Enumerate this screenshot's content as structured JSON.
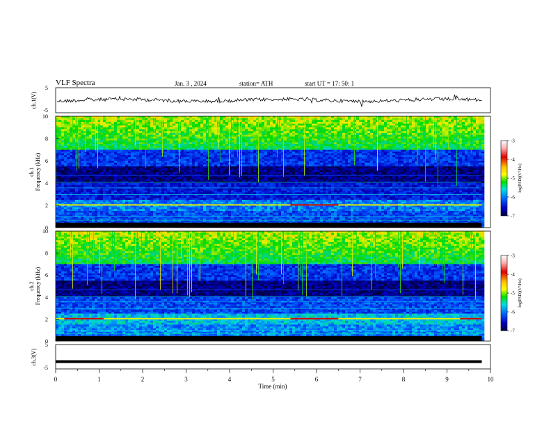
{
  "header": {
    "title": "VLF  Spectra",
    "date": "Jan.  3  ,  2024",
    "station": "station= ATH",
    "start": "start  UT  =   17: 50: 1"
  },
  "colorbar": {
    "label": "log(PSD)(V²/Hz)",
    "ticks": [
      "-3",
      "-4",
      "-5",
      "-6",
      "-7"
    ],
    "stops": [
      "#ffffff",
      "#ff8080",
      "#e00000",
      "#ffc000",
      "#ffff00",
      "#00e000",
      "#00e0e0",
      "#0060ff",
      "#0000c0",
      "#000040"
    ]
  },
  "chart_data": [
    {
      "type": "line",
      "ylabel": "ch.1(V)",
      "ylim": [
        -5,
        5
      ],
      "y_ticks": [
        "5",
        "-5"
      ],
      "description_level": -0.6
    },
    {
      "type": "heatmap",
      "ylabel": "ch.1\nFrequency (kHz)",
      "ylim": [
        0,
        10
      ],
      "y_ticks": [
        "0",
        "2",
        "4",
        "6",
        "8",
        "10"
      ],
      "colorbar": "log(PSD)(V²/Hz)",
      "clim": [
        -7,
        -3
      ]
    },
    {
      "type": "heatmap",
      "ylabel": "ch.2\nFrequency (kHz)",
      "ylim": [
        0,
        10
      ],
      "y_ticks": [
        "0",
        "2",
        "4",
        "6",
        "8",
        "10"
      ],
      "colorbar": "log(PSD)(V²/Hz)",
      "clim": [
        -7,
        -3
      ]
    },
    {
      "type": "line",
      "ylabel": "ch.3(V)",
      "ylim": [
        -5,
        5
      ],
      "y_ticks": [
        "5",
        "-5"
      ],
      "x": [
        0,
        9.8
      ],
      "y": [
        -2,
        -2
      ],
      "xlabel": "Time  (min)",
      "xlim": [
        0,
        10
      ],
      "x_ticks": [
        "0",
        "1",
        "2",
        "3",
        "4",
        "5",
        "6",
        "7",
        "8",
        "9",
        "10"
      ]
    }
  ]
}
